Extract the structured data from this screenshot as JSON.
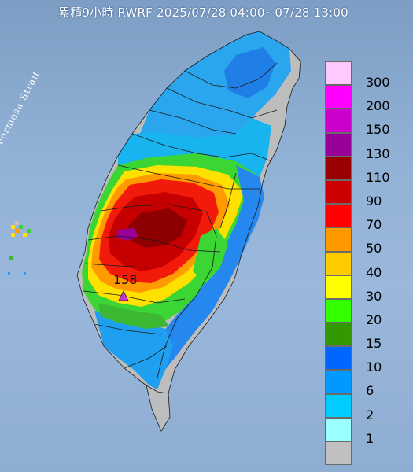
{
  "title": "累積9小時 RWRF 2025/07/28 04:00~07/28 13:00",
  "strait_label": "Formosa Strait",
  "peak_label": "158",
  "legend": [
    {
      "label": "300",
      "color": "#ffc8ff"
    },
    {
      "label": "200",
      "color": "#ff00ff"
    },
    {
      "label": "150",
      "color": "#cc00cc"
    },
    {
      "label": "130",
      "color": "#990099"
    },
    {
      "label": "110",
      "color": "#990000"
    },
    {
      "label": "90",
      "color": "#cc0000"
    },
    {
      "label": "70",
      "color": "#ff0000"
    },
    {
      "label": "50",
      "color": "#ff9900"
    },
    {
      "label": "40",
      "color": "#ffcc00"
    },
    {
      "label": "30",
      "color": "#ffff00"
    },
    {
      "label": "20",
      "color": "#33ff00"
    },
    {
      "label": "15",
      "color": "#339900"
    },
    {
      "label": "10",
      "color": "#0066ff"
    },
    {
      "label": "6",
      "color": "#0099ff"
    },
    {
      "label": "2",
      "color": "#00ccff"
    },
    {
      "label": "1",
      "color": "#99ffff"
    },
    {
      "label": "",
      "color": "#c0c0c0"
    }
  ]
}
